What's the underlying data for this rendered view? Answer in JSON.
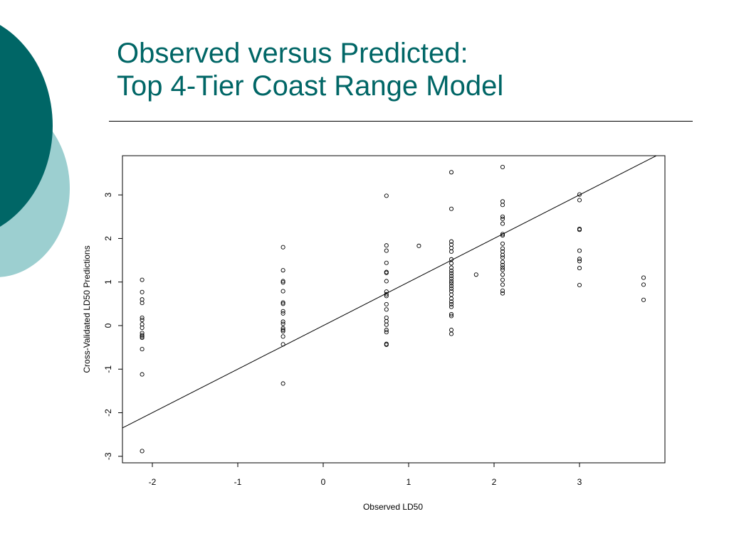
{
  "slide": {
    "title_line1": "Observed versus Predicted:",
    "title_line2": "Top 4-Tier Coast Range Model",
    "colors": {
      "title": "#006666",
      "circle_dark": "#006666",
      "circle_light": "#9ccfd0"
    }
  },
  "chart_data": {
    "type": "scatter",
    "title": "",
    "xlabel": "Observed LD50",
    "ylabel": "Cross-Validated LD50 Predictions",
    "xlim": [
      -2.35,
      4.0
    ],
    "ylim": [
      -3.15,
      3.9
    ],
    "xticks": [
      -2,
      -1,
      0,
      1,
      2,
      3
    ],
    "yticks": [
      -3,
      -2,
      -1,
      0,
      1,
      2,
      3
    ],
    "grid": false,
    "marker": "open-circle",
    "reference_line": {
      "slope": 1,
      "intercept": 0
    },
    "points": [
      {
        "x": -2.12,
        "y": 1.05
      },
      {
        "x": -2.12,
        "y": 0.77
      },
      {
        "x": -2.12,
        "y": 0.6
      },
      {
        "x": -2.12,
        "y": 0.52
      },
      {
        "x": -2.12,
        "y": 0.18
      },
      {
        "x": -2.12,
        "y": 0.13
      },
      {
        "x": -2.12,
        "y": 0.03
      },
      {
        "x": -2.12,
        "y": -0.05
      },
      {
        "x": -2.12,
        "y": -0.17
      },
      {
        "x": -2.12,
        "y": -0.22
      },
      {
        "x": -2.12,
        "y": -0.25
      },
      {
        "x": -2.12,
        "y": -0.28
      },
      {
        "x": -2.12,
        "y": -0.54
      },
      {
        "x": -2.12,
        "y": -1.12
      },
      {
        "x": -2.12,
        "y": -2.88
      },
      {
        "x": -0.47,
        "y": 1.8
      },
      {
        "x": -0.47,
        "y": 1.27
      },
      {
        "x": -0.47,
        "y": 1.02
      },
      {
        "x": -0.47,
        "y": 0.99
      },
      {
        "x": -0.47,
        "y": 0.79
      },
      {
        "x": -0.47,
        "y": 0.53
      },
      {
        "x": -0.47,
        "y": 0.5
      },
      {
        "x": -0.47,
        "y": 0.33
      },
      {
        "x": -0.47,
        "y": 0.28
      },
      {
        "x": -0.47,
        "y": 0.09
      },
      {
        "x": -0.47,
        "y": 0.04
      },
      {
        "x": -0.47,
        "y": -0.06
      },
      {
        "x": -0.47,
        "y": -0.1
      },
      {
        "x": -0.47,
        "y": -0.13
      },
      {
        "x": -0.47,
        "y": -0.25
      },
      {
        "x": -0.47,
        "y": -0.43
      },
      {
        "x": -0.47,
        "y": -1.33
      },
      {
        "x": 0.74,
        "y": 2.98
      },
      {
        "x": 0.74,
        "y": 1.84
      },
      {
        "x": 0.74,
        "y": 1.72
      },
      {
        "x": 0.74,
        "y": 1.44
      },
      {
        "x": 0.74,
        "y": 1.23
      },
      {
        "x": 0.74,
        "y": 1.21
      },
      {
        "x": 0.74,
        "y": 1.02
      },
      {
        "x": 0.74,
        "y": 0.78
      },
      {
        "x": 0.74,
        "y": 0.72
      },
      {
        "x": 0.74,
        "y": 0.68
      },
      {
        "x": 0.74,
        "y": 0.49
      },
      {
        "x": 0.74,
        "y": 0.37
      },
      {
        "x": 0.74,
        "y": 0.18
      },
      {
        "x": 0.74,
        "y": 0.1
      },
      {
        "x": 0.74,
        "y": 0.02
      },
      {
        "x": 0.74,
        "y": -0.1
      },
      {
        "x": 0.74,
        "y": -0.15
      },
      {
        "x": 0.74,
        "y": -0.42
      },
      {
        "x": 0.74,
        "y": -0.44
      },
      {
        "x": 1.12,
        "y": 1.83
      },
      {
        "x": 1.5,
        "y": 3.52
      },
      {
        "x": 1.5,
        "y": 2.68
      },
      {
        "x": 1.5,
        "y": 1.93
      },
      {
        "x": 1.5,
        "y": 1.86
      },
      {
        "x": 1.5,
        "y": 1.78
      },
      {
        "x": 1.5,
        "y": 1.7
      },
      {
        "x": 1.5,
        "y": 1.52
      },
      {
        "x": 1.5,
        "y": 1.43
      },
      {
        "x": 1.5,
        "y": 1.33
      },
      {
        "x": 1.5,
        "y": 1.26
      },
      {
        "x": 1.5,
        "y": 1.2
      },
      {
        "x": 1.5,
        "y": 1.14
      },
      {
        "x": 1.5,
        "y": 1.08
      },
      {
        "x": 1.5,
        "y": 1.02
      },
      {
        "x": 1.5,
        "y": 0.97
      },
      {
        "x": 1.5,
        "y": 0.91
      },
      {
        "x": 1.5,
        "y": 0.85
      },
      {
        "x": 1.5,
        "y": 0.79
      },
      {
        "x": 1.5,
        "y": 0.71
      },
      {
        "x": 1.5,
        "y": 0.62
      },
      {
        "x": 1.5,
        "y": 0.55
      },
      {
        "x": 1.5,
        "y": 0.49
      },
      {
        "x": 1.5,
        "y": 0.43
      },
      {
        "x": 1.5,
        "y": 0.26
      },
      {
        "x": 1.5,
        "y": 0.22
      },
      {
        "x": 1.5,
        "y": -0.1
      },
      {
        "x": 1.5,
        "y": -0.19
      },
      {
        "x": 1.79,
        "y": 1.17
      },
      {
        "x": 2.1,
        "y": 3.64
      },
      {
        "x": 2.1,
        "y": 2.85
      },
      {
        "x": 2.1,
        "y": 2.77
      },
      {
        "x": 2.1,
        "y": 2.5
      },
      {
        "x": 2.1,
        "y": 2.45
      },
      {
        "x": 2.1,
        "y": 2.34
      },
      {
        "x": 2.1,
        "y": 2.1
      },
      {
        "x": 2.1,
        "y": 2.07
      },
      {
        "x": 2.1,
        "y": 1.88
      },
      {
        "x": 2.1,
        "y": 1.77
      },
      {
        "x": 2.1,
        "y": 1.7
      },
      {
        "x": 2.1,
        "y": 1.62
      },
      {
        "x": 2.1,
        "y": 1.56
      },
      {
        "x": 2.1,
        "y": 1.46
      },
      {
        "x": 2.1,
        "y": 1.39
      },
      {
        "x": 2.1,
        "y": 1.33
      },
      {
        "x": 2.1,
        "y": 1.28
      },
      {
        "x": 2.1,
        "y": 1.17
      },
      {
        "x": 2.1,
        "y": 1.05
      },
      {
        "x": 2.1,
        "y": 0.94
      },
      {
        "x": 2.1,
        "y": 0.8
      },
      {
        "x": 2.1,
        "y": 0.74
      },
      {
        "x": 3.0,
        "y": 3.01
      },
      {
        "x": 3.0,
        "y": 2.88
      },
      {
        "x": 3.0,
        "y": 2.22
      },
      {
        "x": 3.0,
        "y": 2.2
      },
      {
        "x": 3.0,
        "y": 1.72
      },
      {
        "x": 3.0,
        "y": 1.53
      },
      {
        "x": 3.0,
        "y": 1.48
      },
      {
        "x": 3.0,
        "y": 1.32
      },
      {
        "x": 3.0,
        "y": 0.93
      },
      {
        "x": 3.75,
        "y": 1.1
      },
      {
        "x": 3.75,
        "y": 0.94
      },
      {
        "x": 3.75,
        "y": 0.59
      }
    ]
  }
}
